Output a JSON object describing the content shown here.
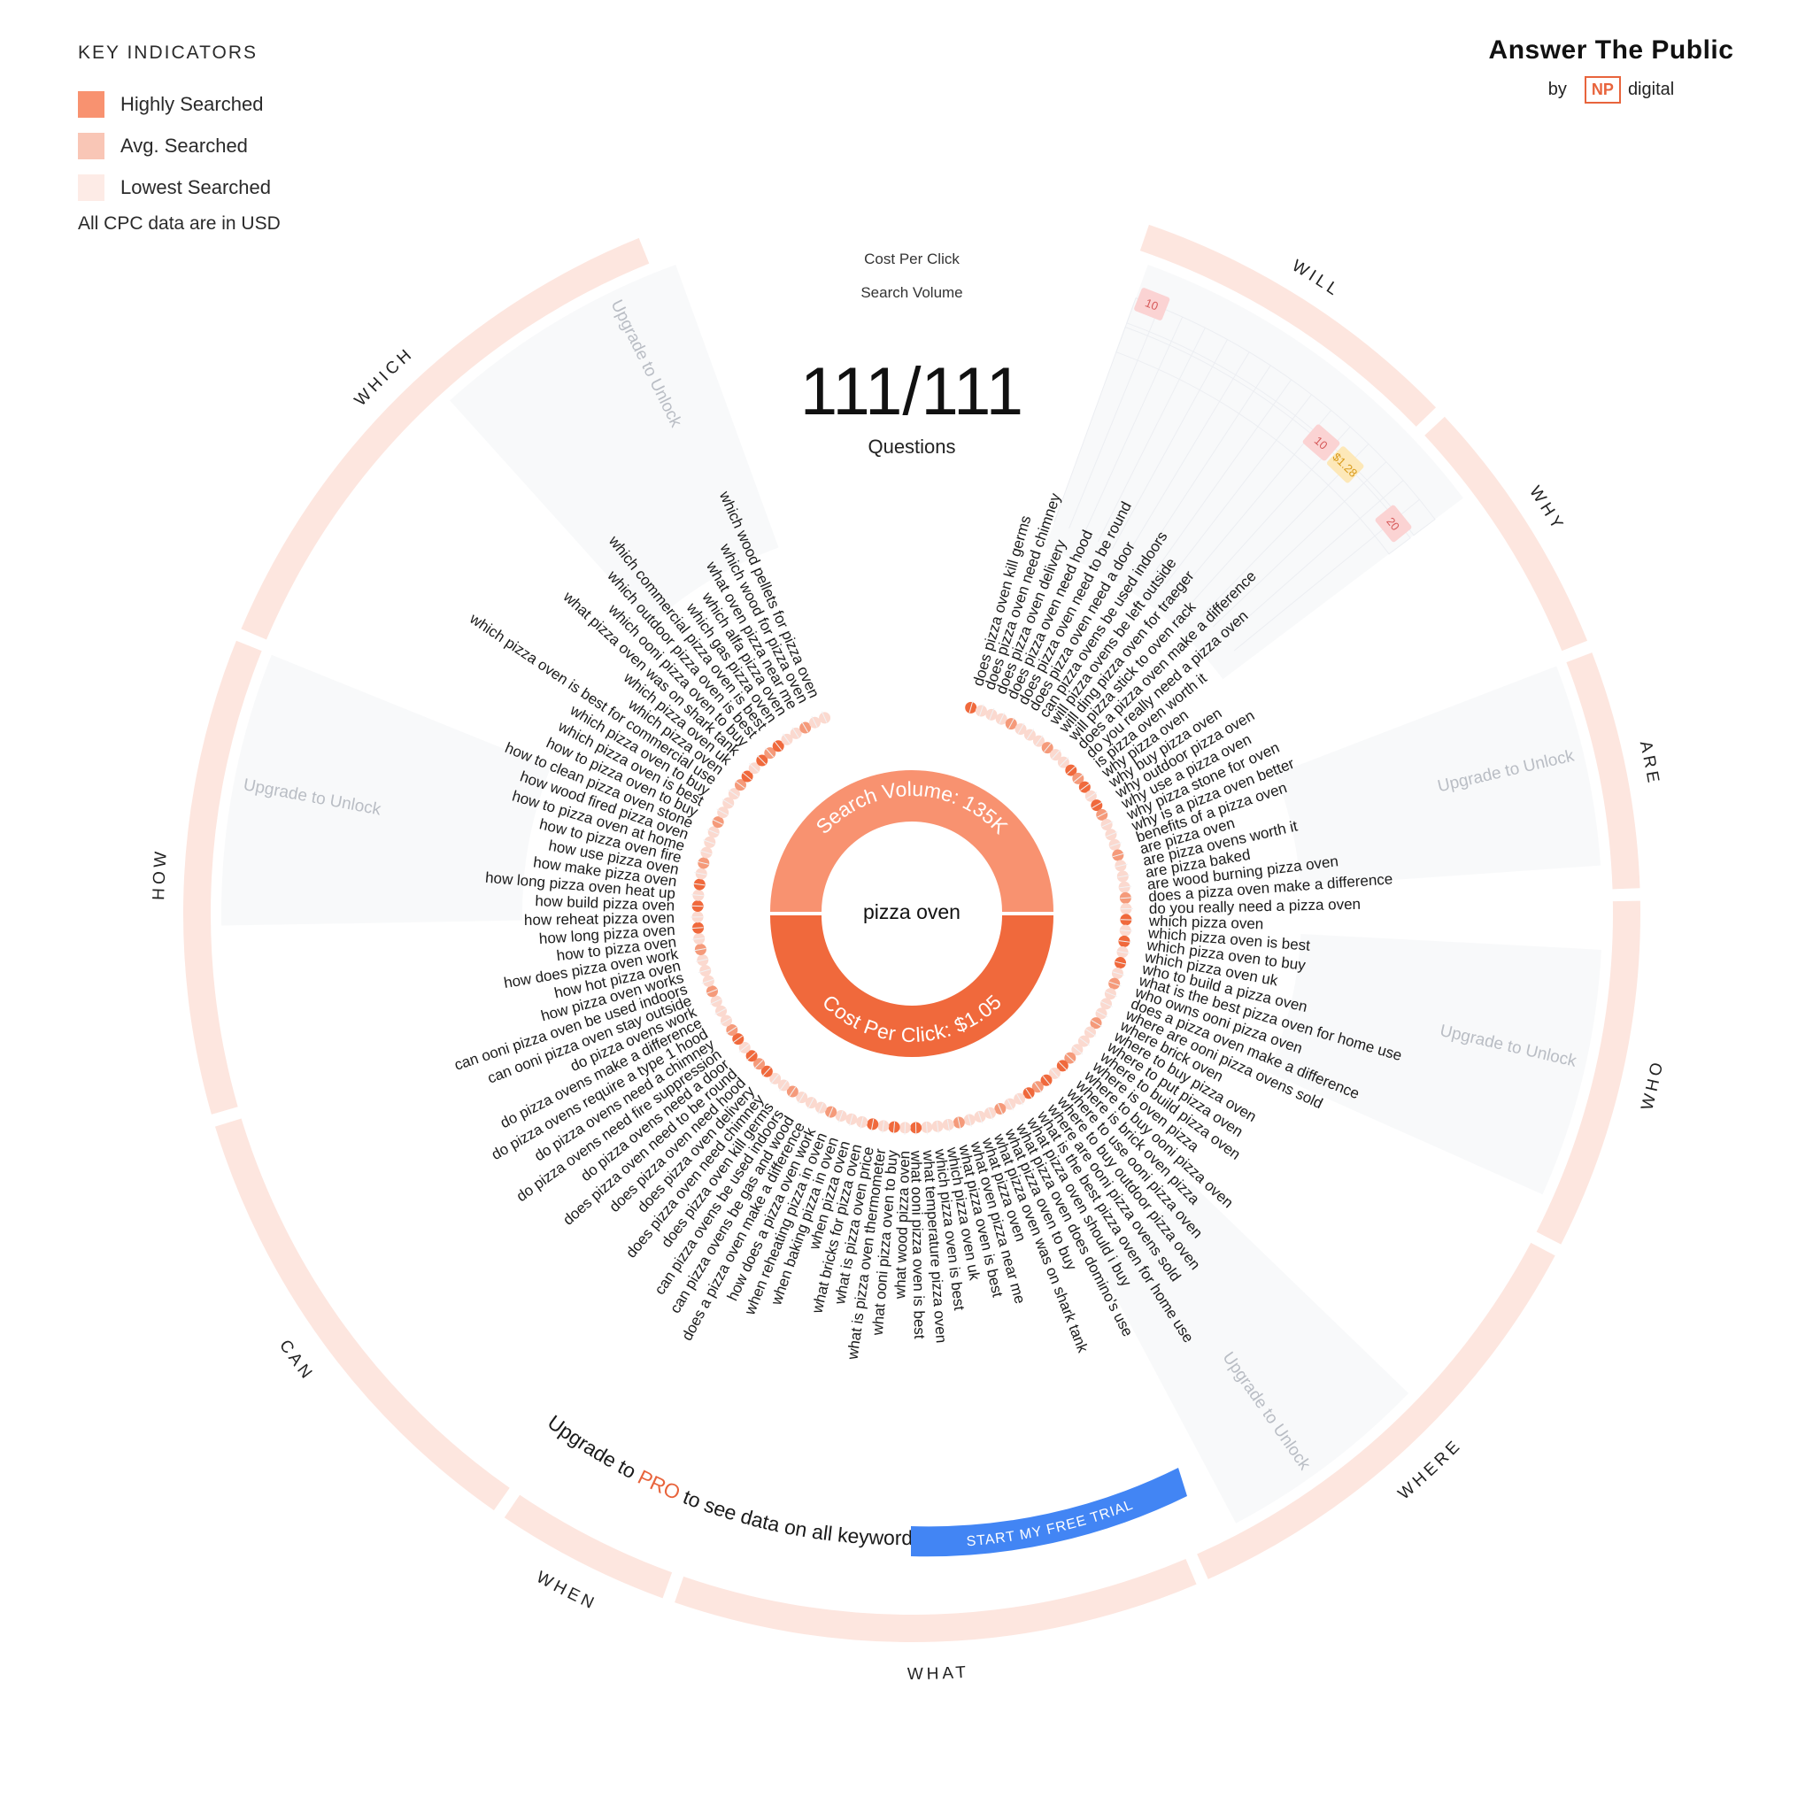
{
  "legend": {
    "title": "KEY INDICATORS",
    "items": [
      {
        "label": "Highly Searched",
        "color": "#f89270"
      },
      {
        "label": "Avg. Searched",
        "color": "#f9c6b6"
      },
      {
        "label": "Lowest Searched",
        "color": "#fdebe6"
      }
    ],
    "note": "All CPC data are in USD"
  },
  "brand": {
    "name": "Answer The Public",
    "by": "by",
    "logo": "NP",
    "company": "digital"
  },
  "header": {
    "cpc_label": "Cost Per Click",
    "volume_label": "Search Volume"
  },
  "count": {
    "value": "111/111",
    "label": "Questions"
  },
  "center": {
    "keyword": "pizza oven",
    "search_volume": "Search Volume: 135K",
    "cpc": "Cost Per Click: $1.05"
  },
  "colors": {
    "high": "#f0693c",
    "mid": "#f59a7a",
    "low": "#fbd9cf",
    "ring": "#fde6df",
    "accent": "#e8643c",
    "cta": "#4285f4"
  },
  "upgrade": {
    "unlock": "Upgrade to Unlock",
    "banner_pre": "Upgrade to ",
    "banner_pro": "PRO",
    "banner_post": " to see data on all keywords",
    "cta": "START MY FREE TRIAL"
  },
  "badges": [
    {
      "text": "10",
      "kind": "pink"
    },
    {
      "text": "$1.28",
      "kind": "yellow"
    },
    {
      "text": "10",
      "kind": "pink"
    },
    {
      "text": "20",
      "kind": "pink"
    }
  ],
  "categories": [
    "WILL",
    "WHY",
    "ARE",
    "WHO",
    "WHERE",
    "WHAT",
    "WHEN",
    "CAN",
    "HOW",
    "WHICH"
  ],
  "questions": [
    "does pizza oven kill germs",
    "does pizza oven need chimney",
    "does pizza oven delivery",
    "does pizza oven need hood",
    "does pizza oven need to be round",
    "does pizza oven need a door",
    "can pizza ovens be used indoors",
    "will pizza ovens be left outside",
    "will ding pizza oven for traeger",
    "will pizza stick to oven rack",
    "does a pizza oven make a difference",
    "do you really need a pizza oven",
    "is pizza oven worth it",
    "why pizza oven",
    "why buy pizza oven",
    "why outdoor pizza oven",
    "why use a pizza oven",
    "why pizza stone for oven",
    "why is a pizza oven better",
    "benefits of a pizza oven",
    "are pizza oven",
    "are pizza ovens worth it",
    "are pizza baked",
    "are wood burning pizza oven",
    "does a pizza oven make a difference",
    "do you really need a pizza oven",
    "which pizza oven",
    "which pizza oven is best",
    "which pizza oven to buy",
    "which pizza oven uk",
    "who to build a pizza oven",
    "what is the best pizza oven for home use",
    "who owns ooni pizza oven",
    "does a pizza oven make a difference",
    "where are ooni pizza ovens sold",
    "where brick oven",
    "where to buy pizza oven",
    "where to put pizza oven",
    "where to build pizza oven",
    "where is oven pizza",
    "where to buy ooni pizza oven",
    "where is brick oven pizza",
    "where to use ooni pizza oven",
    "where to buy outdoor pizza oven",
    "where are ooni pizza ovens sold",
    "what is the best pizza oven for home use",
    "what pizza oven should i buy",
    "what pizza oven does domino's use",
    "what pizza oven to buy",
    "what pizza oven was on shark tank",
    "what pizza oven",
    "what oven pizza near me",
    "what pizza oven is best",
    "which pizza oven uk",
    "which pizza oven is best",
    "what temperature pizza oven",
    "what ooni pizza oven is best",
    "what wood pizza oven",
    "what ooni pizza oven to buy",
    "what is pizza oven thermometer",
    "what is pizza oven price",
    "what bricks for pizza oven",
    "when pizza oven",
    "when baking pizza in oven",
    "when reheating pizza in oven",
    "how does a pizza oven work",
    "does a pizza oven make a difference",
    "can pizza ovens be gas and wood",
    "can pizza ovens be used indoors",
    "does pizza oven kill germs",
    "does pizza oven need chimney",
    "does pizza oven delivery",
    "does pizza oven need hood",
    "does pizza oven need to be round",
    "do pizza ovens need a door",
    "do pizza ovens need fire suppression",
    "do pizza ovens need a chimney",
    "do pizza ovens require a type 1 hood",
    "do pizza ovens make a difference",
    "do pizza ovens work",
    "can ooni pizza oven stay outside",
    "can ooni pizza oven be used indoors",
    "how pizza oven works",
    "how hot pizza oven",
    "how does pizza oven work",
    "how to pizza oven",
    "how long pizza oven",
    "how reheat pizza oven",
    "how build pizza oven",
    "how long pizza oven heat up",
    "how make pizza oven",
    "how use pizza oven",
    "how to pizza oven fire",
    "how to pizza oven at home",
    "how wood fired pizza oven",
    "how to clean pizza oven stone",
    "how to pizza oven to buy",
    "which pizza oven is best",
    "which pizza oven to buy",
    "which pizza oven is best for commercial use",
    "which pizza oven",
    "which pizza oven uk",
    "what pizza oven was on shark tank",
    "which ooni pizza oven to buy",
    "which outdoor pizza oven is best",
    "which commercial pizza oven is best",
    "which gas pizza oven",
    "which alfa pizza oven",
    "what oven pizza near me",
    "which wood for pizza oven",
    "which wood pellets for pizza oven"
  ]
}
